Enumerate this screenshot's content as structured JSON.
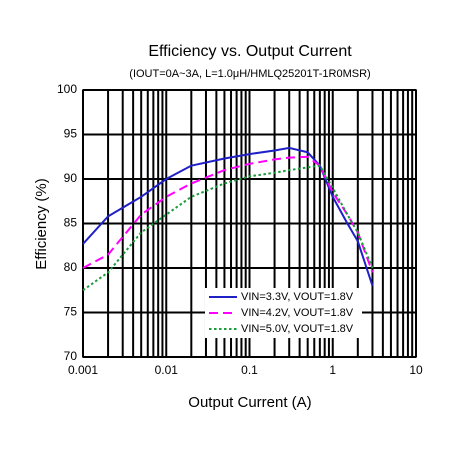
{
  "chart_data": {
    "type": "line",
    "title": "Efficiency vs. Output Current",
    "subtitle": "(IOUT=0A~3A, L=1.0μH/HMLQ25201T-1R0MSR)",
    "x_label": "Output Current (A)",
    "y_label": "Efficiency (%)",
    "x_scale": "log",
    "grid": true,
    "legend": "lower right",
    "x": [
      0.001,
      0.002,
      0.005,
      0.01,
      0.02,
      0.05,
      0.1,
      0.2,
      0.3,
      0.5,
      0.7,
      1,
      1.5,
      2,
      3
    ],
    "series": [
      {
        "name": "VIN=3.3V, VOUT=1.8V",
        "color": "#2020c8",
        "dash": "solid",
        "values": [
          82.7,
          85.8,
          88,
          90,
          91.5,
          92.3,
          92.8,
          93.2,
          93.5,
          93,
          91.5,
          88,
          85,
          83,
          78
        ]
      },
      {
        "name": "VIN=4.2V, VOUT=1.8V",
        "color": "#ff00ff",
        "dash": "dashed",
        "values": [
          80,
          81.5,
          86,
          88,
          89.5,
          91,
          91.7,
          92.2,
          92.4,
          92.5,
          91.5,
          88.5,
          86,
          84,
          79.5
        ]
      },
      {
        "name": "VIN=5.0V, VOUT=1.8V",
        "color": "#1a9a3a",
        "dash": "dotted",
        "values": [
          77.5,
          79.5,
          84,
          86,
          88,
          89.5,
          90.3,
          90.7,
          91,
          91.3,
          91.5,
          89,
          86,
          84,
          80
        ]
      }
    ],
    "xlim": [
      0.001,
      10
    ],
    "xticks": [
      0.001,
      0.01,
      0.1,
      1,
      10
    ],
    "xminorticks": [
      0.002,
      0.003,
      0.004,
      0.005,
      0.006,
      0.007,
      0.008,
      0.009,
      0.02,
      0.03,
      0.04,
      0.05,
      0.06,
      0.07,
      0.08,
      0.09,
      0.2,
      0.3,
      0.4,
      0.5,
      0.6,
      0.7,
      0.8,
      0.9,
      2,
      3,
      4,
      5,
      6,
      7,
      8,
      9
    ],
    "ylim": [
      70,
      100
    ],
    "yticks": [
      70,
      75,
      80,
      85,
      90,
      95,
      100
    ]
  }
}
